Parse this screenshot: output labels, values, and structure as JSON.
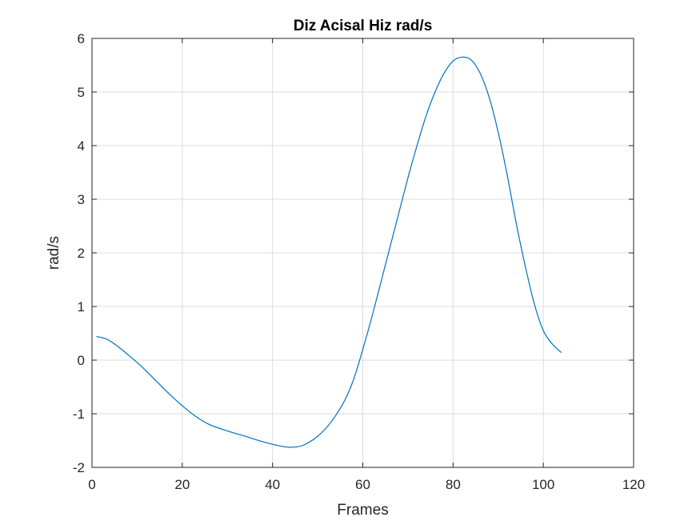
{
  "chart_data": {
    "type": "line",
    "title": "Diz Acisal Hiz rad/s",
    "xlabel": "Frames",
    "ylabel": "rad/s",
    "xlim": [
      0,
      120
    ],
    "ylim": [
      -2,
      6
    ],
    "xticks": [
      "0",
      "20",
      "40",
      "60",
      "80",
      "100",
      "120"
    ],
    "yticks": [
      "-2",
      "-1",
      "0",
      "1",
      "2",
      "3",
      "4",
      "5",
      "6"
    ],
    "grid": true,
    "legend": "none",
    "series": [
      {
        "color": "#0072BD",
        "points": [
          [
            1,
            0.44
          ],
          [
            3,
            0.4
          ],
          [
            5,
            0.3
          ],
          [
            8,
            0.1
          ],
          [
            11,
            -0.12
          ],
          [
            14,
            -0.37
          ],
          [
            17,
            -0.62
          ],
          [
            20,
            -0.85
          ],
          [
            23,
            -1.05
          ],
          [
            26,
            -1.2
          ],
          [
            30,
            -1.32
          ],
          [
            34,
            -1.42
          ],
          [
            37,
            -1.5
          ],
          [
            40,
            -1.57
          ],
          [
            43,
            -1.62
          ],
          [
            45,
            -1.62
          ],
          [
            47,
            -1.58
          ],
          [
            50,
            -1.42
          ],
          [
            53,
            -1.15
          ],
          [
            56,
            -0.75
          ],
          [
            58,
            -0.35
          ],
          [
            60,
            0.2
          ],
          [
            62,
            0.8
          ],
          [
            64,
            1.45
          ],
          [
            66,
            2.1
          ],
          [
            68,
            2.75
          ],
          [
            70,
            3.4
          ],
          [
            72,
            4.0
          ],
          [
            74,
            4.55
          ],
          [
            76,
            5.0
          ],
          [
            78,
            5.35
          ],
          [
            80,
            5.58
          ],
          [
            82,
            5.65
          ],
          [
            84,
            5.6
          ],
          [
            86,
            5.35
          ],
          [
            88,
            4.9
          ],
          [
            90,
            4.25
          ],
          [
            92,
            3.45
          ],
          [
            94,
            2.55
          ],
          [
            96,
            1.75
          ],
          [
            98,
            1.05
          ],
          [
            100,
            0.55
          ],
          [
            102,
            0.3
          ],
          [
            104,
            0.14
          ]
        ]
      }
    ]
  }
}
